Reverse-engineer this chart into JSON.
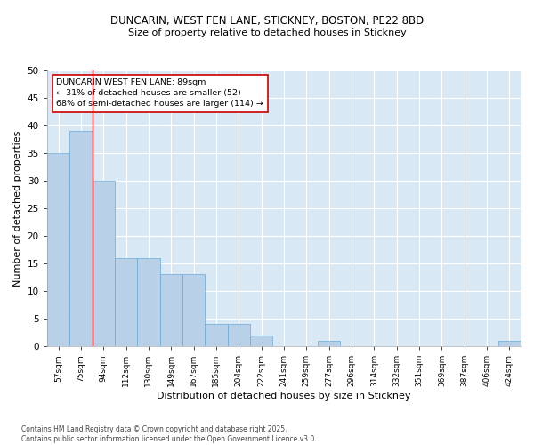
{
  "title_line1": "DUNCARIN, WEST FEN LANE, STICKNEY, BOSTON, PE22 8BD",
  "title_line2": "Size of property relative to detached houses in Stickney",
  "xlabel": "Distribution of detached houses by size in Stickney",
  "ylabel": "Number of detached properties",
  "footer": "Contains HM Land Registry data © Crown copyright and database right 2025.\nContains public sector information licensed under the Open Government Licence v3.0.",
  "categories": [
    "57sqm",
    "75sqm",
    "94sqm",
    "112sqm",
    "130sqm",
    "149sqm",
    "167sqm",
    "185sqm",
    "204sqm",
    "222sqm",
    "241sqm",
    "259sqm",
    "277sqm",
    "296sqm",
    "314sqm",
    "332sqm",
    "351sqm",
    "369sqm",
    "387sqm",
    "406sqm",
    "424sqm"
  ],
  "values": [
    35,
    39,
    30,
    16,
    16,
    13,
    13,
    4,
    4,
    2,
    0,
    0,
    1,
    0,
    0,
    0,
    0,
    0,
    0,
    0,
    1
  ],
  "bar_color": "#b8d0e8",
  "bar_edge_color": "#6aaad4",
  "bg_color": "#d8e8f4",
  "grid_color": "#ffffff",
  "annotation_text": "DUNCARIN WEST FEN LANE: 89sqm\n← 31% of detached houses are smaller (52)\n68% of semi-detached houses are larger (114) →",
  "annotation_box_color": "#ffffff",
  "annotation_border_color": "#cc0000",
  "vline_color": "#cc0000",
  "vline_x": 1.5,
  "ylim": [
    0,
    50
  ],
  "yticks": [
    0,
    5,
    10,
    15,
    20,
    25,
    30,
    35,
    40,
    45,
    50
  ]
}
